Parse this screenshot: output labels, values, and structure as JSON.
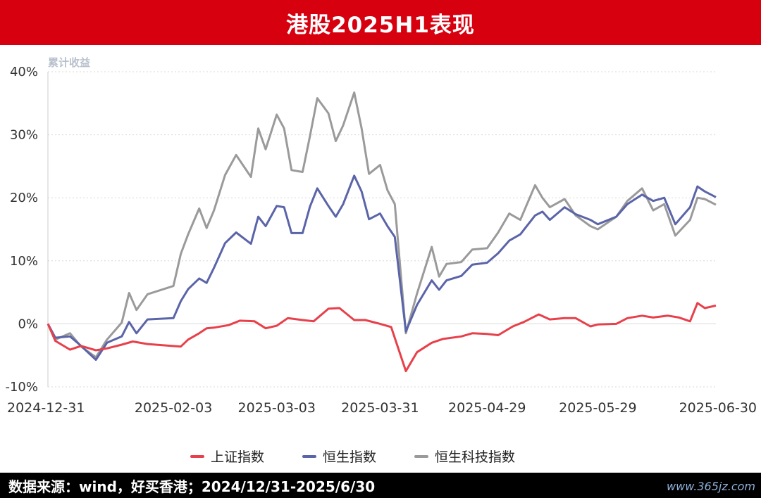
{
  "header": {
    "title": "港股2025H1表现"
  },
  "footer": {
    "source": "数据来源：wind，好买香港；2024/12/31-2025/6/30"
  },
  "watermark": {
    "text": "www.365jz.com"
  },
  "colors": {
    "header_bg": "#d7000f",
    "sse": "#e8404a",
    "hsi": "#5a64a8",
    "hstech": "#9a9a9a",
    "grid": "#d9d9d9"
  },
  "chart_data": {
    "type": "line",
    "title": "",
    "ylabel": "累计收益",
    "xlabel": "",
    "ylim": [
      -10,
      40
    ],
    "yticks": [
      -10,
      0,
      10,
      20,
      30,
      40
    ],
    "ytick_labels": [
      "-10%",
      "0%",
      "10%",
      "20%",
      "30%",
      "40%"
    ],
    "xtick_labels": [
      "2024-12-31",
      "2025-02-03",
      "2025-03-03",
      "2025-03-31",
      "2025-04-29",
      "2025-05-29",
      "2025-06-30"
    ],
    "legend_position": "bottom-center",
    "grid": "horizontal-dotted",
    "series": [
      {
        "name": "上证指数",
        "color": "#e8404a",
        "points": [
          [
            "2024-12-31",
            0
          ],
          [
            "2025-01-02",
            -2.7
          ],
          [
            "2025-01-06",
            -4.1
          ],
          [
            "2025-01-09",
            -3.5
          ],
          [
            "2025-01-13",
            -4.2
          ],
          [
            "2025-01-16",
            -3.9
          ],
          [
            "2025-01-20",
            -3.3
          ],
          [
            "2025-01-23",
            -2.8
          ],
          [
            "2025-01-27",
            -3.2
          ],
          [
            "2025-02-05",
            -3.6
          ],
          [
            "2025-02-07",
            -2.5
          ],
          [
            "2025-02-10",
            -1.5
          ],
          [
            "2025-02-12",
            -0.7
          ],
          [
            "2025-02-14",
            -0.6
          ],
          [
            "2025-02-18",
            -0.2
          ],
          [
            "2025-02-21",
            0.5
          ],
          [
            "2025-02-25",
            0.4
          ],
          [
            "2025-02-28",
            -0.7
          ],
          [
            "2025-03-03",
            -0.3
          ],
          [
            "2025-03-06",
            0.9
          ],
          [
            "2025-03-10",
            0.6
          ],
          [
            "2025-03-13",
            0.4
          ],
          [
            "2025-03-17",
            2.4
          ],
          [
            "2025-03-20",
            2.5
          ],
          [
            "2025-03-24",
            0.6
          ],
          [
            "2025-03-27",
            0.6
          ],
          [
            "2025-03-31",
            0.0
          ],
          [
            "2025-04-03",
            -0.5
          ],
          [
            "2025-04-07",
            -7.5
          ],
          [
            "2025-04-10",
            -4.5
          ],
          [
            "2025-04-14",
            -3.0
          ],
          [
            "2025-04-17",
            -2.4
          ],
          [
            "2025-04-22",
            -2.0
          ],
          [
            "2025-04-25",
            -1.5
          ],
          [
            "2025-04-29",
            -1.6
          ],
          [
            "2025-05-02",
            -1.8
          ],
          [
            "2025-05-06",
            -0.4
          ],
          [
            "2025-05-09",
            0.3
          ],
          [
            "2025-05-13",
            1.5
          ],
          [
            "2025-05-16",
            0.7
          ],
          [
            "2025-05-20",
            0.9
          ],
          [
            "2025-05-23",
            0.9
          ],
          [
            "2025-05-27",
            -0.4
          ],
          [
            "2025-05-29",
            -0.1
          ],
          [
            "2025-06-03",
            0.0
          ],
          [
            "2025-06-06",
            0.9
          ],
          [
            "2025-06-10",
            1.3
          ],
          [
            "2025-06-13",
            1.0
          ],
          [
            "2025-06-17",
            1.3
          ],
          [
            "2025-06-20",
            1.0
          ],
          [
            "2025-06-23",
            0.4
          ],
          [
            "2025-06-25",
            3.3
          ],
          [
            "2025-06-27",
            2.5
          ],
          [
            "2025-06-30",
            2.9
          ]
        ]
      },
      {
        "name": "恒生指数",
        "color": "#5a64a8",
        "points": [
          [
            "2024-12-31",
            0
          ],
          [
            "2025-01-02",
            -2.2
          ],
          [
            "2025-01-06",
            -2.0
          ],
          [
            "2025-01-09",
            -3.5
          ],
          [
            "2025-01-13",
            -5.7
          ],
          [
            "2025-01-16",
            -3.0
          ],
          [
            "2025-01-20",
            -2.0
          ],
          [
            "2025-01-22",
            0.3
          ],
          [
            "2025-01-24",
            -1.5
          ],
          [
            "2025-01-27",
            0.7
          ],
          [
            "2025-02-03",
            0.9
          ],
          [
            "2025-02-05",
            3.6
          ],
          [
            "2025-02-07",
            5.5
          ],
          [
            "2025-02-10",
            7.2
          ],
          [
            "2025-02-12",
            6.5
          ],
          [
            "2025-02-14",
            8.9
          ],
          [
            "2025-02-17",
            12.8
          ],
          [
            "2025-02-20",
            14.5
          ],
          [
            "2025-02-24",
            12.7
          ],
          [
            "2025-02-26",
            17.0
          ],
          [
            "2025-02-28",
            15.5
          ],
          [
            "2025-03-03",
            18.7
          ],
          [
            "2025-03-05",
            18.5
          ],
          [
            "2025-03-07",
            14.4
          ],
          [
            "2025-03-10",
            14.4
          ],
          [
            "2025-03-12",
            18.6
          ],
          [
            "2025-03-14",
            21.5
          ],
          [
            "2025-03-17",
            18.7
          ],
          [
            "2025-03-19",
            17.0
          ],
          [
            "2025-03-21",
            19.0
          ],
          [
            "2025-03-24",
            23.5
          ],
          [
            "2025-03-26",
            21.0
          ],
          [
            "2025-03-28",
            16.6
          ],
          [
            "2025-03-31",
            17.5
          ],
          [
            "2025-04-02",
            15.5
          ],
          [
            "2025-04-04",
            13.8
          ],
          [
            "2025-04-07",
            -1.2
          ],
          [
            "2025-04-10",
            3.0
          ],
          [
            "2025-04-14",
            6.9
          ],
          [
            "2025-04-16",
            5.4
          ],
          [
            "2025-04-18",
            6.9
          ],
          [
            "2025-04-22",
            7.6
          ],
          [
            "2025-04-25",
            9.4
          ],
          [
            "2025-04-29",
            9.7
          ],
          [
            "2025-05-02",
            11.2
          ],
          [
            "2025-05-05",
            13.2
          ],
          [
            "2025-05-08",
            14.2
          ],
          [
            "2025-05-12",
            17.2
          ],
          [
            "2025-05-14",
            17.8
          ],
          [
            "2025-05-16",
            16.5
          ],
          [
            "2025-05-20",
            18.5
          ],
          [
            "2025-05-23",
            17.4
          ],
          [
            "2025-05-27",
            16.5
          ],
          [
            "2025-05-29",
            15.8
          ],
          [
            "2025-06-03",
            17.0
          ],
          [
            "2025-06-06",
            19.0
          ],
          [
            "2025-06-10",
            20.5
          ],
          [
            "2025-06-13",
            19.5
          ],
          [
            "2025-06-16",
            20.0
          ],
          [
            "2025-06-19",
            15.8
          ],
          [
            "2025-06-23",
            18.5
          ],
          [
            "2025-06-25",
            21.8
          ],
          [
            "2025-06-27",
            21.0
          ],
          [
            "2025-06-30",
            20.1
          ]
        ]
      },
      {
        "name": "恒生科技指数",
        "color": "#9a9a9a",
        "points": [
          [
            "2024-12-31",
            0
          ],
          [
            "2025-01-02",
            -2.5
          ],
          [
            "2025-01-06",
            -1.5
          ],
          [
            "2025-01-09",
            -3.6
          ],
          [
            "2025-01-13",
            -5.3
          ],
          [
            "2025-01-16",
            -2.5
          ],
          [
            "2025-01-20",
            0.2
          ],
          [
            "2025-01-22",
            4.9
          ],
          [
            "2025-01-24",
            2.2
          ],
          [
            "2025-01-27",
            4.7
          ],
          [
            "2025-02-03",
            6.0
          ],
          [
            "2025-02-05",
            11.1
          ],
          [
            "2025-02-07",
            14.2
          ],
          [
            "2025-02-10",
            18.3
          ],
          [
            "2025-02-12",
            15.2
          ],
          [
            "2025-02-14",
            18.0
          ],
          [
            "2025-02-17",
            23.6
          ],
          [
            "2025-02-20",
            26.8
          ],
          [
            "2025-02-24",
            23.3
          ],
          [
            "2025-02-26",
            31.0
          ],
          [
            "2025-02-28",
            27.7
          ],
          [
            "2025-03-03",
            33.2
          ],
          [
            "2025-03-05",
            31.0
          ],
          [
            "2025-03-07",
            24.4
          ],
          [
            "2025-03-10",
            24.1
          ],
          [
            "2025-03-12",
            29.8
          ],
          [
            "2025-03-14",
            35.8
          ],
          [
            "2025-03-17",
            33.4
          ],
          [
            "2025-03-19",
            29.0
          ],
          [
            "2025-03-21",
            31.5
          ],
          [
            "2025-03-24",
            36.7
          ],
          [
            "2025-03-26",
            31.0
          ],
          [
            "2025-03-28",
            23.8
          ],
          [
            "2025-03-31",
            25.2
          ],
          [
            "2025-04-02",
            21.2
          ],
          [
            "2025-04-04",
            19.0
          ],
          [
            "2025-04-07",
            -1.5
          ],
          [
            "2025-04-10",
            4.8
          ],
          [
            "2025-04-14",
            12.2
          ],
          [
            "2025-04-16",
            7.5
          ],
          [
            "2025-04-18",
            9.5
          ],
          [
            "2025-04-22",
            9.8
          ],
          [
            "2025-04-25",
            11.8
          ],
          [
            "2025-04-29",
            12.0
          ],
          [
            "2025-05-02",
            14.5
          ],
          [
            "2025-05-05",
            17.5
          ],
          [
            "2025-05-08",
            16.5
          ],
          [
            "2025-05-12",
            22.0
          ],
          [
            "2025-05-14",
            20.0
          ],
          [
            "2025-05-16",
            18.5
          ],
          [
            "2025-05-20",
            19.8
          ],
          [
            "2025-05-23",
            17.2
          ],
          [
            "2025-05-27",
            15.5
          ],
          [
            "2025-05-29",
            15.0
          ],
          [
            "2025-06-03",
            17.0
          ],
          [
            "2025-06-06",
            19.5
          ],
          [
            "2025-06-10",
            21.5
          ],
          [
            "2025-06-13",
            18.0
          ],
          [
            "2025-06-16",
            19.0
          ],
          [
            "2025-06-19",
            14.0
          ],
          [
            "2025-06-23",
            16.5
          ],
          [
            "2025-06-25",
            20.0
          ],
          [
            "2025-06-27",
            19.8
          ],
          [
            "2025-06-30",
            18.9
          ]
        ]
      }
    ]
  }
}
